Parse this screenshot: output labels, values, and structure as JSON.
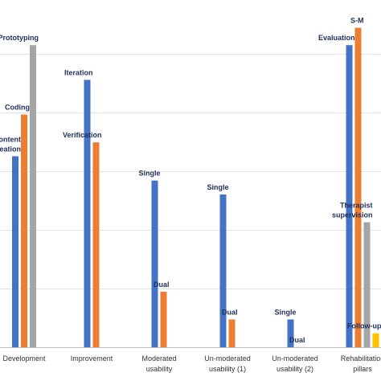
{
  "chart_data": {
    "type": "bar",
    "ylim": [
      0,
      100
    ],
    "grid": true,
    "categories": [
      {
        "label_lines": [
          "Development"
        ],
        "bars": [
          {
            "color": "#4472c4",
            "value": 55,
            "label_lines": [
              "Content",
              "creation"
            ]
          },
          {
            "color": "#ed7d31",
            "value": 67,
            "label_lines": [
              "Coding"
            ]
          },
          {
            "color": "#a5a5a5",
            "value": 87,
            "label_lines": [
              "Prototyping"
            ]
          }
        ]
      },
      {
        "label_lines": [
          "Improvement"
        ],
        "bars": [
          {
            "color": "#4472c4",
            "value": 77,
            "label_lines": [
              "Iteration"
            ]
          },
          {
            "color": "#ed7d31",
            "value": 59,
            "label_lines": [
              "Verification"
            ]
          }
        ]
      },
      {
        "label_lines": [
          "Moderated",
          "usability"
        ],
        "bars": [
          {
            "color": "#4472c4",
            "value": 48,
            "label_lines": [
              "Single"
            ]
          },
          {
            "color": "#ed7d31",
            "value": 16,
            "label_lines": [
              "Dual"
            ]
          }
        ]
      },
      {
        "label_lines": [
          "Un-moderated",
          "usability (1)"
        ],
        "bars": [
          {
            "color": "#4472c4",
            "value": 44,
            "label_lines": [
              "Single"
            ]
          },
          {
            "color": "#ed7d31",
            "value": 8,
            "label_lines": [
              "Dual"
            ]
          }
        ]
      },
      {
        "label_lines": [
          "Un-moderated",
          "usability (2)"
        ],
        "bars": [
          {
            "color": "#4472c4",
            "value": 8,
            "label_lines": [
              "Single"
            ]
          },
          {
            "color": "#ed7d31",
            "value": 0,
            "label_lines": [
              "Dual"
            ]
          }
        ]
      },
      {
        "label_lines": [
          "Rehabilitation",
          "pillars"
        ],
        "bars": [
          {
            "color": "#4472c4",
            "value": 87,
            "label_lines": [
              "Evaluation"
            ]
          },
          {
            "color": "#ed7d31",
            "value": 92,
            "label_lines": [
              "S-M"
            ]
          },
          {
            "color": "#a5a5a5",
            "value": 36,
            "label_lines": [
              "Therapist",
              "supervision"
            ]
          },
          {
            "color": "#ffc000",
            "value": 4,
            "label_lines": [
              "Follow-up"
            ]
          }
        ]
      }
    ]
  }
}
